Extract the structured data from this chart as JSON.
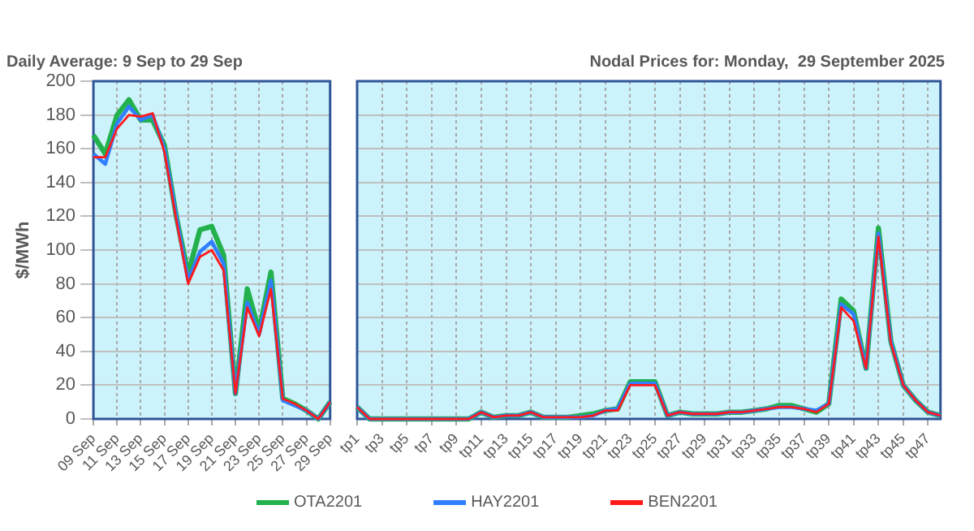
{
  "chart_data": [
    {
      "type": "line",
      "title": "Daily Average: 9 Sep to 29 Sep",
      "ylabel": "$/MWh",
      "categories": [
        "09 Sep",
        null,
        "11 Sep",
        null,
        "13 Sep",
        null,
        "15 Sep",
        null,
        "17 Sep",
        null,
        "19 Sep",
        null,
        "21 Sep",
        null,
        "23 Sep",
        null,
        "25 Sep",
        null,
        "27 Sep",
        null,
        "29 Sep"
      ],
      "series": [
        {
          "color": "#22b14c",
          "values": [
            168,
            157,
            180,
            189,
            177,
            177,
            162,
            120,
            86,
            112,
            114,
            97,
            15,
            77,
            52,
            87,
            12,
            9,
            5,
            0,
            10
          ]
        },
        {
          "color": "#2f7fff",
          "values": [
            157,
            151,
            175,
            185,
            177,
            180,
            160,
            120,
            82,
            99,
            105,
            92,
            15,
            69,
            50,
            82,
            11,
            8,
            5,
            0,
            10
          ]
        },
        {
          "color": "#ff1a1a",
          "values": [
            155,
            155,
            172,
            180,
            179,
            181,
            158,
            118,
            80,
            96,
            100,
            88,
            15,
            66,
            49,
            77,
            12,
            9,
            5,
            0,
            10
          ]
        }
      ],
      "ylim": [
        0,
        200
      ],
      "yticks": [
        0,
        20,
        40,
        60,
        80,
        100,
        120,
        140,
        160,
        180,
        200
      ],
      "grid": true,
      "legend": false,
      "marker": "none"
    },
    {
      "type": "line",
      "title": "Nodal Prices for: Monday,  29 September 2025",
      "categories": [
        "tp1",
        null,
        "tp3",
        null,
        "tp5",
        null,
        "tp7",
        null,
        "tp9",
        null,
        "tp11",
        null,
        "tp13",
        null,
        "tp15",
        null,
        "tp17",
        null,
        "tp19",
        null,
        "tp21",
        null,
        "tp23",
        null,
        "tp25",
        null,
        "tp27",
        null,
        "tp29",
        null,
        "tp31",
        null,
        "tp33",
        null,
        "tp35",
        null,
        "tp37",
        null,
        "tp39",
        null,
        "tp41",
        null,
        "tp43",
        null,
        "tp45",
        null,
        "tp47",
        null
      ],
      "series": [
        {
          "name": "OTA2201",
          "color": "#22b14c",
          "values": [
            7,
            0,
            0,
            0,
            0,
            0,
            0,
            0,
            0,
            0,
            4,
            1,
            2,
            2,
            4,
            1,
            1,
            1,
            2,
            3,
            5,
            6,
            22,
            22,
            22,
            2,
            4,
            3,
            3,
            3,
            4,
            4,
            5,
            6,
            8,
            8,
            6,
            4,
            9,
            71,
            64,
            30,
            113,
            46,
            20,
            11,
            4,
            2
          ]
        },
        {
          "name": "HAY2201",
          "color": "#2f7fff",
          "values": [
            7,
            0,
            0,
            0,
            0,
            0,
            0,
            0,
            0,
            0,
            4,
            1,
            2,
            2,
            4,
            1,
            1,
            1,
            1,
            2,
            5,
            6,
            21,
            21,
            21,
            2,
            4,
            3,
            3,
            3,
            4,
            4,
            5,
            6,
            7,
            7,
            6,
            5,
            9,
            68,
            62,
            30,
            110,
            46,
            20,
            11,
            4,
            2
          ]
        },
        {
          "name": "BEN2201",
          "color": "#ff1a1a",
          "values": [
            7,
            0,
            0,
            0,
            0,
            0,
            0,
            0,
            0,
            0,
            4,
            1,
            2,
            2,
            4,
            1,
            1,
            1,
            1,
            2,
            5,
            5,
            20,
            20,
            20,
            2,
            4,
            3,
            3,
            3,
            4,
            4,
            5,
            6,
            7,
            7,
            6,
            4,
            9,
            66,
            58,
            30,
            108,
            45,
            20,
            11,
            4,
            2
          ]
        }
      ],
      "ylim": [
        0,
        200
      ],
      "yticks": [
        0,
        20,
        40,
        60,
        80,
        100,
        120,
        140,
        160,
        180,
        200
      ],
      "tick_labels": "x",
      "grid": true,
      "legend": "bottom",
      "marker": "none"
    }
  ]
}
